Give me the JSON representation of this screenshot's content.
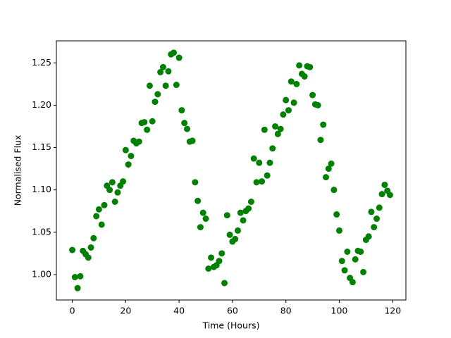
{
  "chart_data": {
    "type": "scatter",
    "xlabel": "Time (Hours)",
    "ylabel": "Normalised Flux",
    "x": [
      0,
      1,
      2,
      3,
      4,
      5,
      6,
      7,
      8,
      9,
      10,
      11,
      12,
      13,
      14,
      15,
      16,
      17,
      18,
      19,
      20,
      21,
      22,
      23,
      24,
      25,
      26,
      27,
      28,
      29,
      30,
      31,
      32,
      33,
      34,
      35,
      36,
      37,
      38,
      39,
      40,
      41,
      42,
      43,
      44,
      45,
      46,
      47,
      48,
      49,
      50,
      51,
      52,
      53,
      54,
      55,
      56,
      57,
      58,
      59,
      60,
      61,
      62,
      63,
      64,
      65,
      66,
      67,
      68,
      69,
      70,
      71,
      72,
      73,
      74,
      75,
      76,
      77,
      78,
      79,
      80,
      81,
      82,
      83,
      84,
      85,
      86,
      87,
      88,
      89,
      90,
      91,
      92,
      93,
      94,
      95,
      96,
      97,
      98,
      99,
      100,
      101,
      102,
      103,
      104,
      105,
      106,
      107,
      108,
      109,
      110,
      111,
      112,
      113,
      114,
      115,
      116,
      117,
      118,
      119
    ],
    "series": [
      {
        "color": "#008000",
        "values": [
          1.029,
          0.997,
          0.984,
          0.998,
          1.028,
          1.024,
          1.02,
          1.032,
          1.043,
          1.069,
          1.077,
          1.059,
          1.082,
          1.105,
          1.1,
          1.109,
          1.086,
          1.097,
          1.105,
          1.11,
          1.147,
          1.13,
          1.14,
          1.158,
          1.155,
          1.157,
          1.179,
          1.18,
          1.171,
          1.223,
          1.181,
          1.204,
          1.213,
          1.239,
          1.245,
          1.223,
          1.24,
          1.26,
          1.262,
          1.224,
          1.256,
          1.194,
          1.179,
          1.172,
          1.157,
          1.158,
          1.109,
          1.087,
          1.056,
          1.073,
          1.066,
          1.007,
          1.02,
          1.009,
          1.011,
          1.016,
          1.025,
          0.99,
          1.07,
          1.047,
          1.039,
          1.042,
          1.052,
          1.073,
          1.064,
          1.075,
          1.078,
          1.086,
          1.137,
          1.109,
          1.132,
          1.11,
          1.171,
          1.117,
          1.132,
          1.149,
          1.175,
          1.166,
          1.172,
          1.189,
          1.206,
          1.194,
          1.228,
          1.203,
          1.225,
          1.247,
          1.237,
          1.234,
          1.246,
          1.245,
          1.212,
          1.201,
          1.2,
          1.159,
          1.177,
          1.115,
          1.125,
          1.131,
          1.1,
          1.071,
          1.052,
          1.016,
          1.005,
          1.027,
          0.996,
          0.991,
          1.018,
          1.028,
          1.027,
          1.003,
          1.041,
          1.045,
          1.074,
          1.056,
          1.066,
          1.079,
          1.095,
          1.106,
          1.099,
          1.094
        ]
      }
    ],
    "xlim": [
      -5.95,
      124.95
    ],
    "ylim": [
      0.97,
      1.276
    ],
    "xticks": [
      0,
      20,
      40,
      60,
      80,
      100,
      120
    ],
    "yticks": [
      {
        "value": 1,
        "label": "1.00"
      },
      {
        "value": 1.05,
        "label": "1.05"
      },
      {
        "value": 1.1,
        "label": "1.10"
      },
      {
        "value": 1.15,
        "label": "1.15"
      },
      {
        "value": 1.2,
        "label": "1.20"
      },
      {
        "value": 1.25,
        "label": "1.25"
      }
    ]
  }
}
